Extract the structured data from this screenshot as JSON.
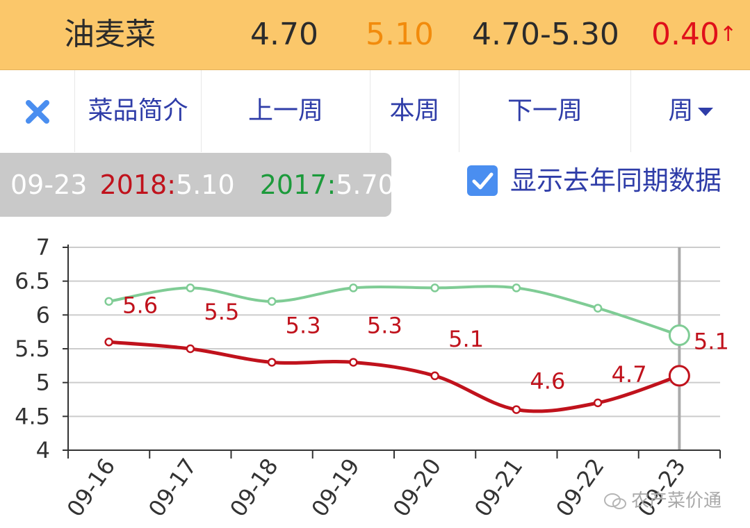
{
  "header": {
    "name": "油麦菜",
    "price_low": "4.70",
    "price_avg": "5.10",
    "price_range": "4.70-5.30",
    "change": "0.40",
    "change_arrow": "↑",
    "colors": {
      "background": "#fbc76a",
      "avg": "#f28b0c",
      "change": "#e0101a"
    }
  },
  "toolbar": {
    "close_icon": "close-x-icon",
    "intro": "菜品简介",
    "prev_week": "上一周",
    "this_week": "本周",
    "next_week": "下一周",
    "period": "周"
  },
  "tooltip": {
    "date": "09-23",
    "y1_label": "2018:",
    "y1_value": "5.10",
    "y2_label": "2017:",
    "y2_value": "5.70"
  },
  "checkbox": {
    "checked": true,
    "label": "显示去年同期数据"
  },
  "watermark": "农产菜价通",
  "chart_data": {
    "type": "line",
    "categories": [
      "09-16",
      "09-17",
      "09-18",
      "09-19",
      "09-20",
      "09-21",
      "09-22",
      "09-23"
    ],
    "series": [
      {
        "name": "2018",
        "color": "#c0121c",
        "values": [
          5.6,
          5.5,
          5.3,
          5.3,
          5.1,
          4.6,
          4.7,
          5.1
        ],
        "labels": [
          "5.6",
          "5.5",
          "5.3",
          "5.3",
          "5.1",
          "4.6",
          "4.7",
          "5.1"
        ]
      },
      {
        "name": "2017",
        "color": "#7fcc95",
        "values": [
          6.2,
          6.4,
          6.2,
          6.4,
          6.4,
          6.4,
          6.1,
          5.7
        ]
      }
    ],
    "ylim": [
      4,
      7
    ],
    "yticks": [
      "4",
      "4.5",
      "5",
      "5.5",
      "6",
      "6.5",
      "7"
    ],
    "highlight_index": 7,
    "grid": true
  }
}
